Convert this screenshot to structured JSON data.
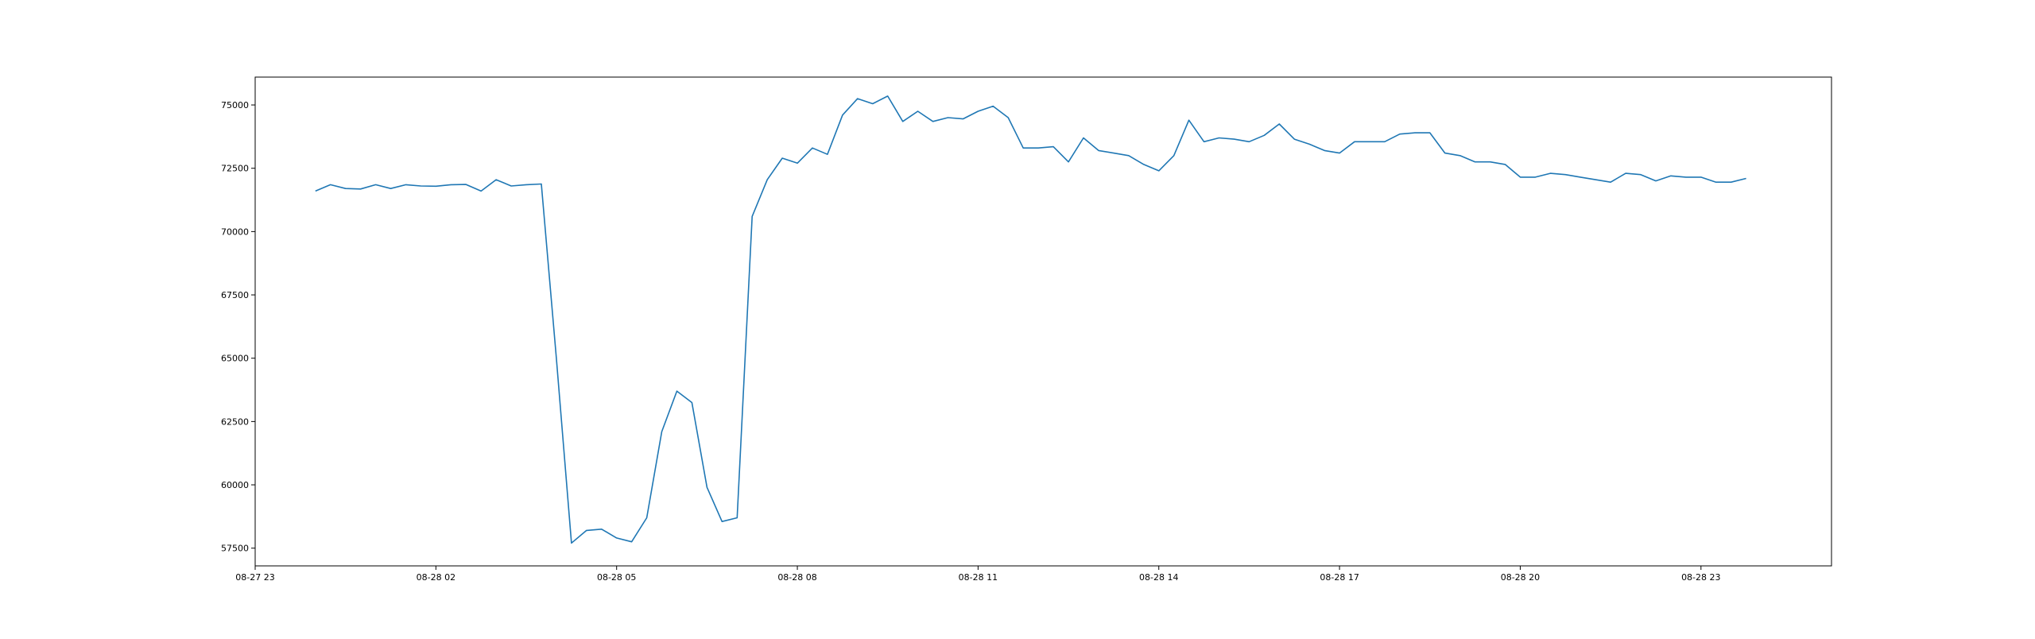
{
  "chart_data": {
    "type": "line",
    "title": "",
    "xlabel": "",
    "ylabel": "",
    "grid": false,
    "legend": "none",
    "series_color": "#1f77b4",
    "xlim": [
      "08-27 23:00",
      "08-29 01:10"
    ],
    "ylim": [
      56800,
      76100
    ],
    "x_ticks": [
      "08-27 23",
      "08-28 02",
      "08-28 05",
      "08-28 08",
      "08-28 11",
      "08-28 14",
      "08-28 17",
      "08-28 20",
      "08-28 23"
    ],
    "y_ticks": [
      57500,
      60000,
      62500,
      65000,
      67500,
      70000,
      72500,
      75000
    ],
    "series": [
      {
        "x": [
          "08-28 00:00",
          "08-28 00:15",
          "08-28 00:30",
          "08-28 00:45",
          "08-28 01:00",
          "08-28 01:15",
          "08-28 01:30",
          "08-28 01:45",
          "08-28 02:00",
          "08-28 02:15",
          "08-28 02:30",
          "08-28 02:45",
          "08-28 03:00",
          "08-28 03:15",
          "08-28 03:30",
          "08-28 03:45",
          "08-28 04:00",
          "08-28 04:15",
          "08-28 04:30",
          "08-28 04:45",
          "08-28 05:00",
          "08-28 05:15",
          "08-28 05:30",
          "08-28 05:45",
          "08-28 06:00",
          "08-28 06:15",
          "08-28 06:30",
          "08-28 06:45",
          "08-28 07:00",
          "08-28 07:15",
          "08-28 07:30",
          "08-28 07:45",
          "08-28 08:00",
          "08-28 08:15",
          "08-28 08:30",
          "08-28 08:45",
          "08-28 09:00",
          "08-28 09:15",
          "08-28 09:30",
          "08-28 09:45",
          "08-28 10:00",
          "08-28 10:15",
          "08-28 10:30",
          "08-28 10:45",
          "08-28 11:00",
          "08-28 11:15",
          "08-28 11:30",
          "08-28 11:45",
          "08-28 12:00",
          "08-28 12:15",
          "08-28 12:30",
          "08-28 12:45",
          "08-28 13:00",
          "08-28 13:15",
          "08-28 13:30",
          "08-28 13:45",
          "08-28 14:00",
          "08-28 14:15",
          "08-28 14:30",
          "08-28 14:45",
          "08-28 15:00",
          "08-28 15:15",
          "08-28 15:30",
          "08-28 15:45",
          "08-28 16:00",
          "08-28 16:15",
          "08-28 16:30",
          "08-28 16:45",
          "08-28 17:00",
          "08-28 17:15",
          "08-28 17:30",
          "08-28 17:45",
          "08-28 18:00",
          "08-28 18:15",
          "08-28 18:30",
          "08-28 18:45",
          "08-28 19:00",
          "08-28 19:15",
          "08-28 19:30",
          "08-28 19:45",
          "08-28 20:00",
          "08-28 20:15",
          "08-28 20:30",
          "08-28 20:45",
          "08-28 21:00",
          "08-28 21:15",
          "08-28 21:30",
          "08-28 21:45",
          "08-28 22:00",
          "08-28 22:15",
          "08-28 22:30",
          "08-28 22:45",
          "08-28 23:00",
          "08-28 23:15",
          "08-28 23:30",
          "08-28 23:45"
        ],
        "values": [
          71600,
          71850,
          71700,
          71680,
          71850,
          71700,
          71850,
          71800,
          71790,
          71850,
          71860,
          71600,
          72050,
          71800,
          71850,
          71880,
          65000,
          57700,
          58200,
          58250,
          57900,
          57750,
          58700,
          62100,
          63700,
          63250,
          59900,
          58550,
          58700,
          70600,
          72050,
          72900,
          72700,
          73300,
          73050,
          74600,
          75250,
          75050,
          75350,
          74350,
          74750,
          74350,
          74500,
          74450,
          74750,
          74950,
          74500,
          73300,
          73300,
          73350,
          72750,
          73700,
          73200,
          73100,
          73000,
          72650,
          72400,
          73000,
          74400,
          73550,
          73700,
          73650,
          73550,
          73800,
          74250,
          73650,
          73450,
          73200,
          73100,
          73550,
          73550,
          73550,
          73850,
          73900,
          73900,
          73100,
          73000,
          72750,
          72750,
          72650,
          72150,
          72150,
          72300,
          72250,
          72150,
          72050,
          71950,
          72300,
          72250,
          72000,
          72200,
          72150,
          72150,
          71950,
          71950,
          72100
        ]
      }
    ]
  }
}
